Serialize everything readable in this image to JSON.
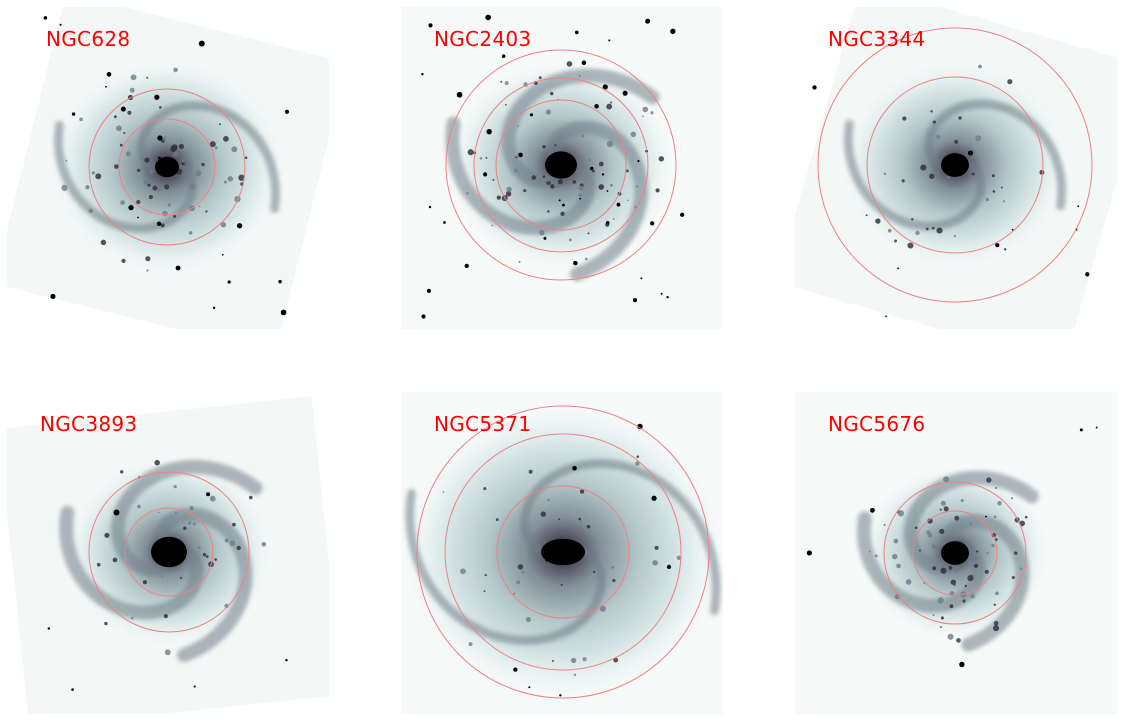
{
  "figure": {
    "accent_color": "#ff0000",
    "ring_color": "#f08080",
    "colormap": [
      "#ffffff",
      "#dcebea",
      "#a9c0c2",
      "#6d7c86",
      "#2f2a3b",
      "#000000"
    ],
    "panels": [
      {
        "label": "NGC628",
        "rings": 2,
        "stars": 22,
        "spiral": true,
        "patchy": true,
        "frame": "tilted",
        "seed": 11
      },
      {
        "label": "NGC2403",
        "rings": 3,
        "stars": 40,
        "spiral": false,
        "patchy": true,
        "frame": "square",
        "seed": 23
      },
      {
        "label": "NGC3344",
        "rings": 2,
        "stars": 10,
        "spiral": true,
        "patchy": false,
        "frame": "tilted",
        "seed": 37
      },
      {
        "label": "NGC3893",
        "rings": 2,
        "stars": 6,
        "spiral": false,
        "patchy": false,
        "frame": "soft",
        "seed": 41
      },
      {
        "label": "NGC5371",
        "rings": 3,
        "stars": 8,
        "spiral": true,
        "patchy": false,
        "frame": "square",
        "seed": 53
      },
      {
        "label": "NGC5676",
        "rings": 2,
        "stars": 6,
        "spiral": false,
        "patchy": true,
        "frame": "soft",
        "seed": 67
      }
    ]
  }
}
